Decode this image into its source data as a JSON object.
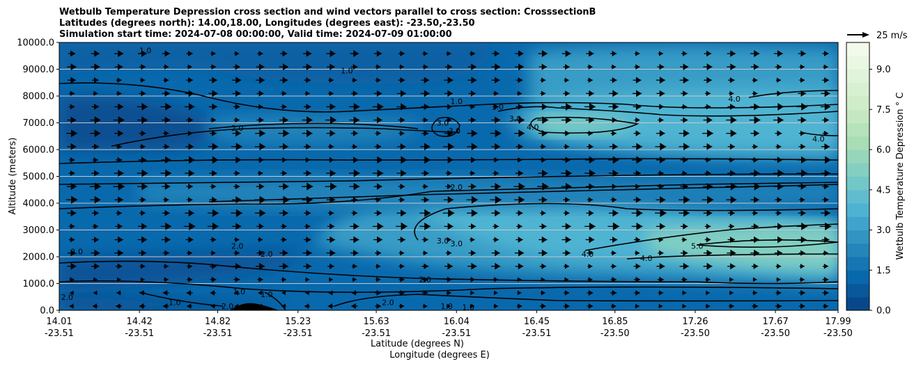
{
  "chart_data": {
    "type": "heatmap",
    "title_lines": [
      "Wetbulb Temperature Depression cross section and wind vectors parallel to cross section: CrosssectionB",
      "Latitudes (degrees north): 14.00,18.00, Longitudes (degrees east): -23.50,-23.50",
      "Simulation start time: 2024-07-08 00:00:00, Valid time: 2024-07-09 01:00:00"
    ],
    "xlabel": "Latitude (degrees N)",
    "xlabel2": "Longitude (degrees E)",
    "ylabel": "Altitude (meters)",
    "x_ticks_lat": [
      "14.01",
      "14.42",
      "14.82",
      "15.23",
      "15.63",
      "16.04",
      "16.45",
      "16.85",
      "17.26",
      "17.67",
      "17.99"
    ],
    "x_ticks_lon": [
      "-23.51",
      "-23.51",
      "-23.51",
      "-23.51",
      "-23.51",
      "-23.51",
      "-23.51",
      "-23.50",
      "-23.50",
      "-23.50",
      "-23.50"
    ],
    "x_tick_values": [
      14.01,
      14.42,
      14.82,
      15.23,
      15.63,
      16.04,
      16.45,
      16.85,
      17.26,
      17.67,
      17.99
    ],
    "xlim": [
      14.01,
      17.99
    ],
    "y_ticks": [
      "0.0",
      "1000.0",
      "2000.0",
      "3000.0",
      "4000.0",
      "5000.0",
      "6000.0",
      "7000.0",
      "8000.0",
      "9000.0",
      "10000.0"
    ],
    "y_tick_values": [
      0,
      1000,
      2000,
      3000,
      4000,
      5000,
      6000,
      7000,
      8000,
      9000,
      10000
    ],
    "ylim": [
      0,
      10000
    ],
    "grid": "horizontal",
    "colorbar": {
      "label": "Wetbulb Temperature Depression ° C",
      "ticks": [
        "0.0",
        "1.5",
        "3.0",
        "4.5",
        "6.0",
        "7.5",
        "9.0"
      ],
      "tick_values": [
        0,
        1.5,
        3,
        4.5,
        6,
        7.5,
        9
      ],
      "range": [
        0,
        10
      ],
      "colormap": "GnBu_r",
      "colors": [
        "#084081",
        "#0868ac",
        "#2b8cbe",
        "#4eb3d3",
        "#7bccc4",
        "#a8ddb5",
        "#ccebc5",
        "#e0f3db",
        "#f7fcf0"
      ]
    },
    "quiver_key": {
      "label": "25 m/s"
    },
    "contour_levels": [
      1.0,
      2.0,
      3.0,
      4.0,
      5.0
    ],
    "contour_labels": [
      {
        "text": "1.0",
        "lat": 14.45,
        "alt": 9700
      },
      {
        "text": "1.0",
        "lat": 15.48,
        "alt": 8950
      },
      {
        "text": "2.0",
        "lat": 14.92,
        "alt": 6800
      },
      {
        "text": "1.0",
        "lat": 16.04,
        "alt": 7800
      },
      {
        "text": "1.0",
        "lat": 16.25,
        "alt": 7600
      },
      {
        "text": "3.0",
        "lat": 15.97,
        "alt": 7000
      },
      {
        "text": "3.0",
        "lat": 16.03,
        "alt": 6700
      },
      {
        "text": "3.0",
        "lat": 16.34,
        "alt": 7150
      },
      {
        "text": "4.0",
        "lat": 16.43,
        "alt": 6850
      },
      {
        "text": "4.0",
        "lat": 17.46,
        "alt": 7900
      },
      {
        "text": "4.0",
        "lat": 17.89,
        "alt": 6400
      },
      {
        "text": "2.0",
        "lat": 16.04,
        "alt": 4600
      },
      {
        "text": "3.0",
        "lat": 15.97,
        "alt": 2600
      },
      {
        "text": "3.0",
        "lat": 16.04,
        "alt": 2500
      },
      {
        "text": "2.0",
        "lat": 14.1,
        "alt": 2200
      },
      {
        "text": "2.0",
        "lat": 14.92,
        "alt": 2400
      },
      {
        "text": "2.0",
        "lat": 15.07,
        "alt": 2100
      },
      {
        "text": "2.0",
        "lat": 15.88,
        "alt": 1150
      },
      {
        "text": "4.0",
        "lat": 16.71,
        "alt": 2100
      },
      {
        "text": "4.0",
        "lat": 17.01,
        "alt": 1950
      },
      {
        "text": "5.0",
        "lat": 17.27,
        "alt": 2400
      },
      {
        "text": "2.0",
        "lat": 14.05,
        "alt": 500
      },
      {
        "text": "1.0",
        "lat": 14.6,
        "alt": 300
      },
      {
        "text": "1.0",
        "lat": 14.93,
        "alt": 700
      },
      {
        "text": "1.0",
        "lat": 15.07,
        "alt": 600
      },
      {
        "text": "2.0",
        "lat": 14.87,
        "alt": 150
      },
      {
        "text": "2.0",
        "lat": 15.69,
        "alt": 300
      },
      {
        "text": "1.0",
        "lat": 15.99,
        "alt": 150
      },
      {
        "text": "1.0",
        "lat": 16.1,
        "alt": 120
      }
    ]
  }
}
